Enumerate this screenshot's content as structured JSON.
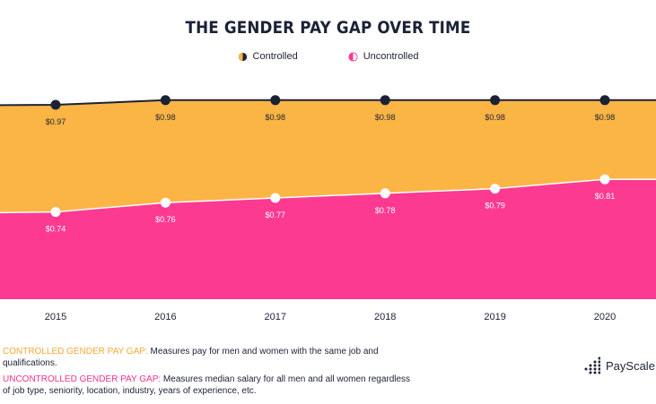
{
  "title": "THE GENDER PAY GAP OVER TIME",
  "legend": {
    "controlled": "Controlled",
    "uncontrolled": "Uncontrolled"
  },
  "colors": {
    "controlled": "#fbb545",
    "uncontrolled": "#fc3a92",
    "line": "#1c2236",
    "controlled_text": "#f7a734",
    "uncontrolled_text": "#f0328a"
  },
  "chart_data": {
    "type": "area",
    "title": "THE GENDER PAY GAP OVER TIME",
    "x": [
      "2015",
      "2016",
      "2017",
      "2018",
      "2019",
      "2020"
    ],
    "series": [
      {
        "name": "Controlled",
        "values": [
          0.97,
          0.98,
          0.98,
          0.98,
          0.98,
          0.98
        ],
        "labels": [
          "$0.97",
          "$0.98",
          "$0.98",
          "$0.98",
          "$0.98",
          "$0.98"
        ]
      },
      {
        "name": "Uncontrolled",
        "values": [
          0.74,
          0.76,
          0.77,
          0.78,
          0.79,
          0.81
        ],
        "labels": [
          "$0.74",
          "$0.76",
          "$0.77",
          "$0.78",
          "$0.79",
          "$0.81"
        ]
      }
    ],
    "ylim": [
      0.6,
      1.0
    ],
    "xlabel": "",
    "ylabel": "",
    "grid": false,
    "legend_position": "top-center"
  },
  "notes": {
    "controlled_key": "CONTROLLED GENDER PAY GAP:",
    "controlled_text": " Measures pay for men and women with the same job and qualifications.",
    "uncontrolled_key": "UNCONTROLLED GENDER PAY GAP:",
    "uncontrolled_text": " Measures median salary for all men and all women regardless of job type, seniority, location, industry, years of experience, etc."
  },
  "brand": {
    "name": "PayScale"
  }
}
